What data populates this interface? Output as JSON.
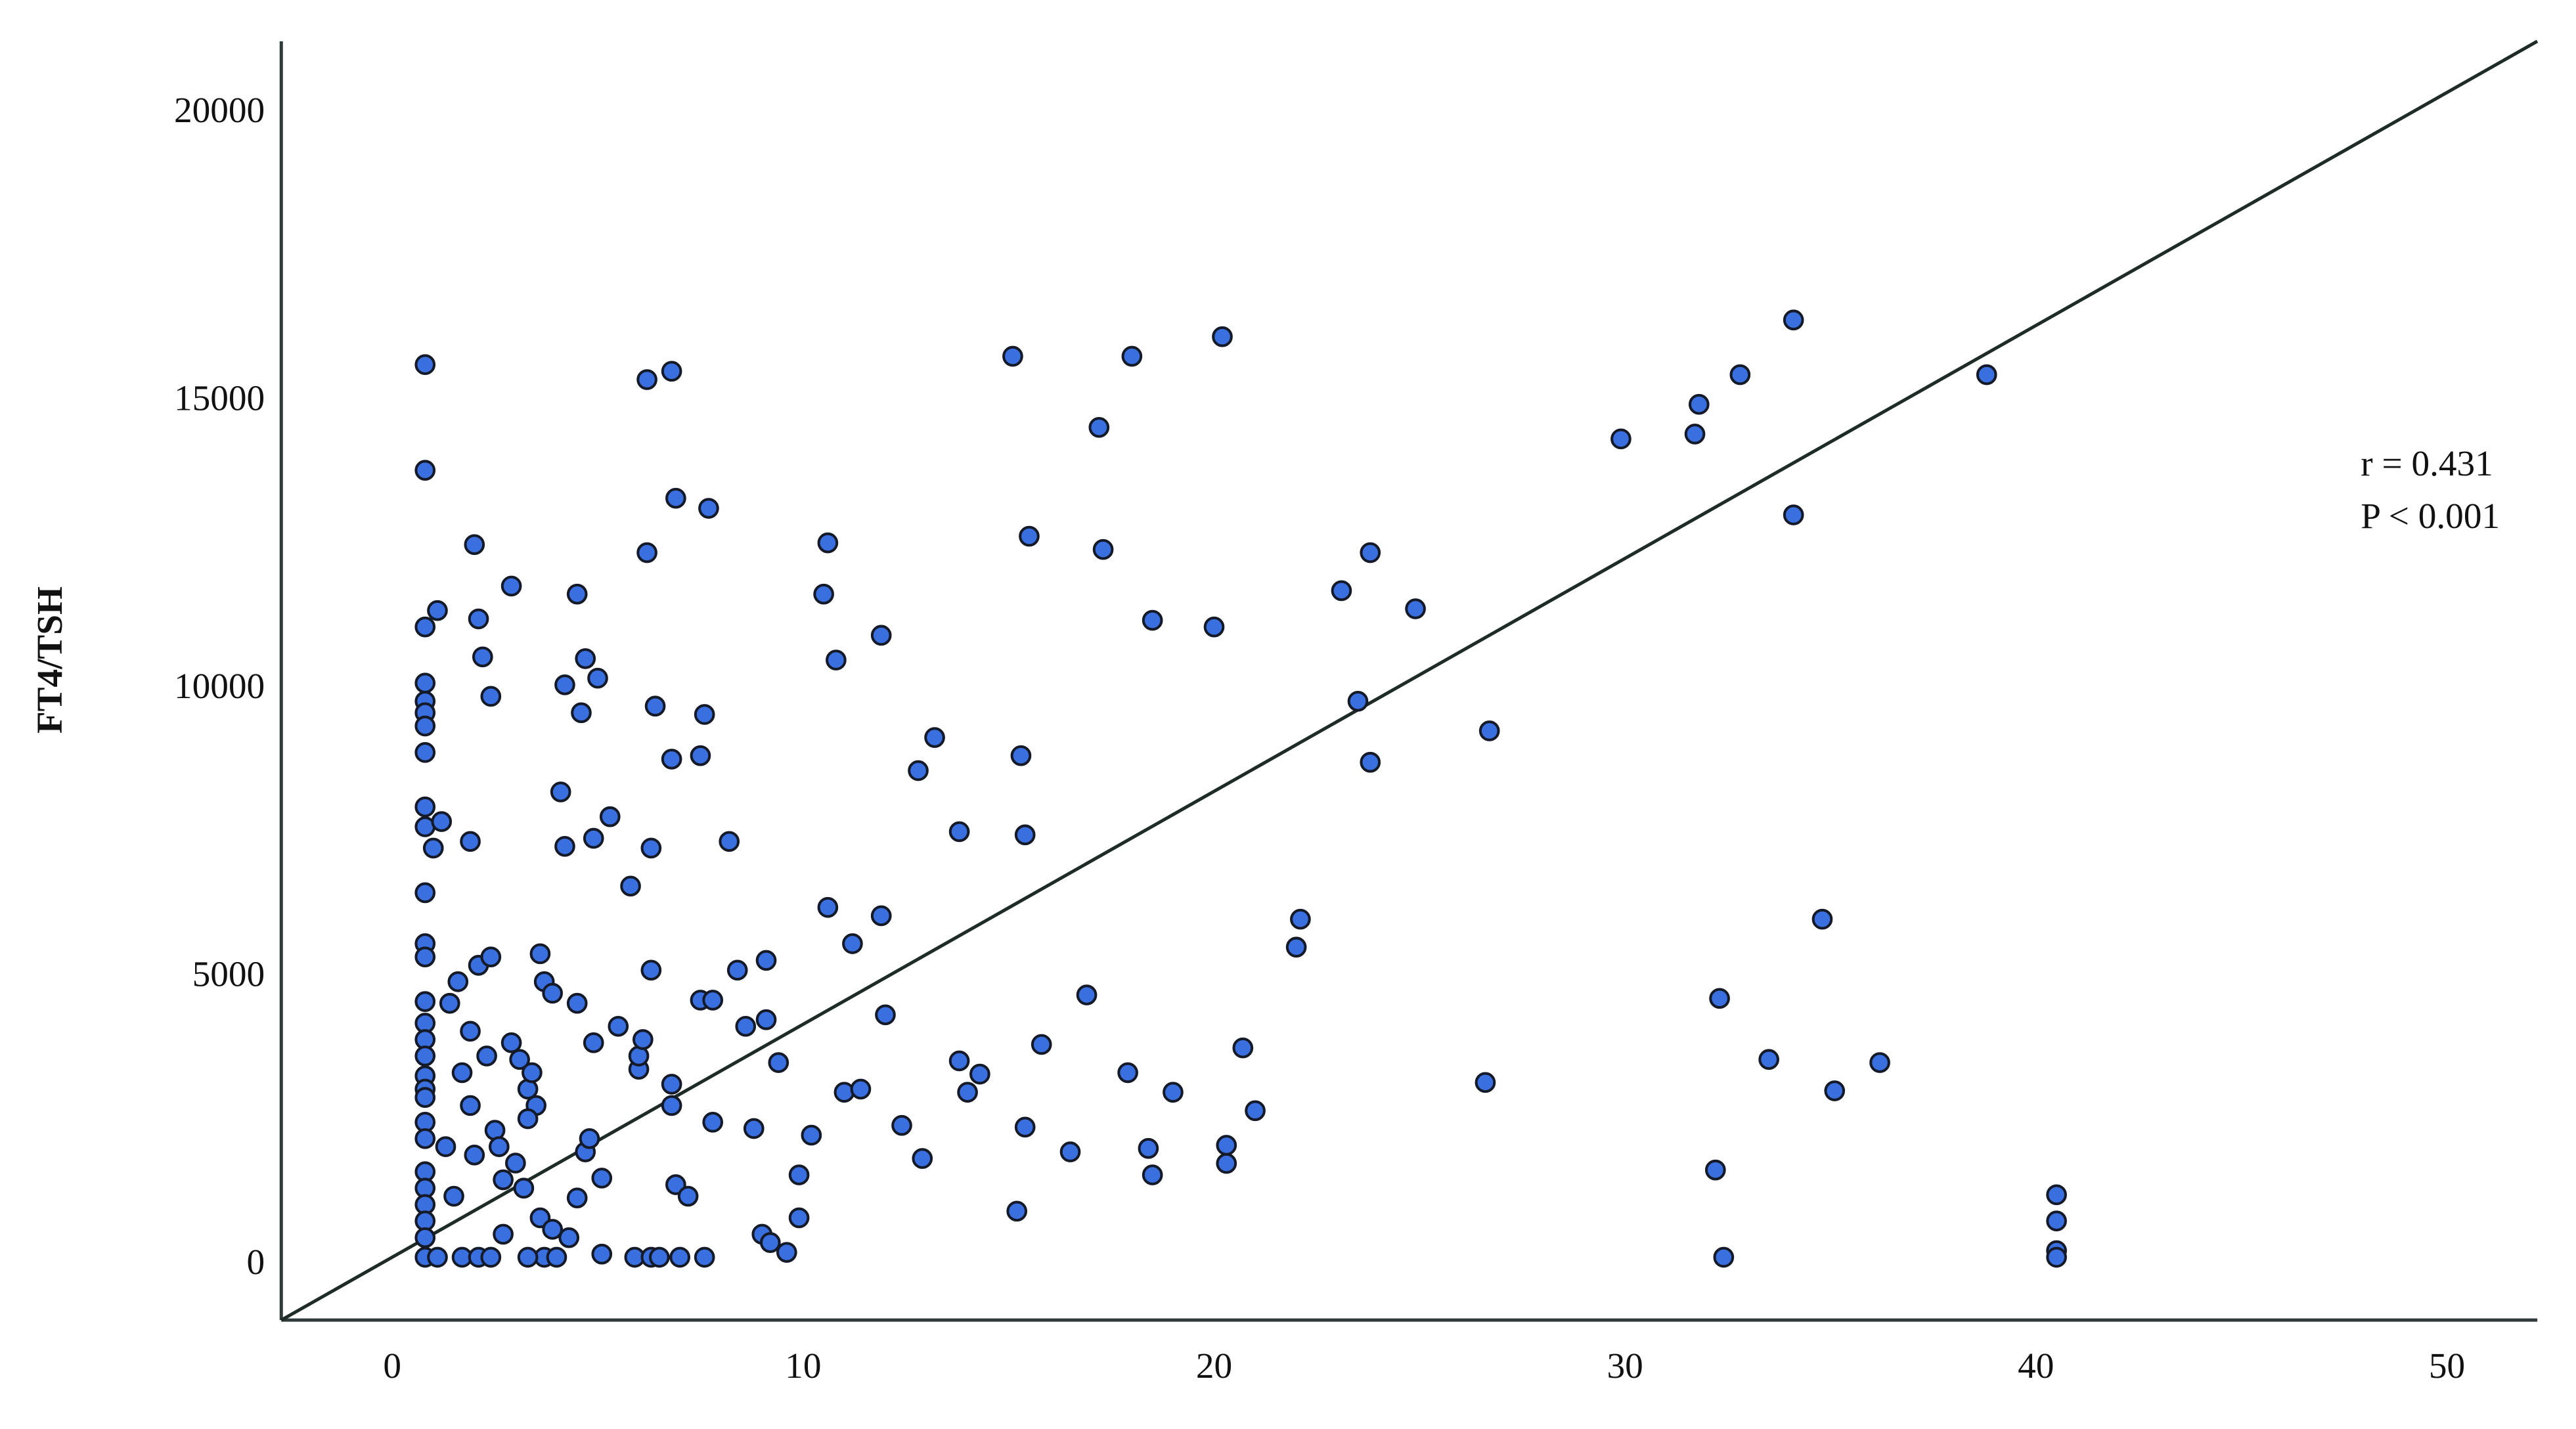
{
  "chart_data": {
    "type": "scatter",
    "y_label": "FT4/TSH",
    "annotations": [
      "r = 0.431",
      "P < 0.001"
    ],
    "color": "#3a6fe0",
    "xlim": [
      -2.7,
      52.2
    ],
    "ylim": [
      -946,
      21260
    ],
    "xticks": [
      0,
      10,
      20,
      30,
      40,
      50
    ],
    "yticks": [
      0,
      5000,
      10000,
      15000,
      20000
    ],
    "x": [
      0.8,
      0.8,
      0.8,
      0.8,
      0.8,
      0.8,
      0.8,
      0.8,
      0.8,
      0.8,
      0.8,
      0.8,
      0.8,
      0.8,
      0.8,
      0.8,
      0.8,
      0.8,
      0.8,
      0.8,
      0.8,
      0.8,
      0.8,
      0.8,
      0.8,
      0.8,
      0.8,
      0.8,
      1.0,
      1.1,
      1.2,
      1.4,
      1.6,
      1.3,
      1.5,
      1.7,
      1.9,
      1.9,
      2.0,
      2.1,
      2.1,
      1.9,
      2.0,
      2.2,
      2.4,
      2.4,
      2.3,
      2.5,
      2.6,
      2.7,
      2.7,
      2.9,
      2.9,
      3.1,
      3.3,
      3.4,
      3.5,
      3.3,
      3.2,
      3.0,
      3.6,
      3.7,
      3.9,
      3.6,
      3.9,
      3.7,
      4.1,
      4.2,
      4.2,
      4.3,
      4.5,
      4.5,
      4.6,
      4.7,
      4.7,
      4.5,
      4.8,
      4.9,
      4.9,
      5.0,
      5.1,
      5.1,
      5.3,
      5.5,
      5.8,
      6.0,
      6.0,
      6.1,
      6.2,
      6.2,
      6.3,
      6.3,
      6.4,
      6.8,
      6.8,
      6.9,
      6.8,
      6.8,
      6.9,
      7.2,
      7.5,
      7.7,
      7.6,
      7.5,
      7.8,
      7.8,
      8.2,
      8.4,
      8.6,
      8.8,
      9.1,
      9.1,
      9.0,
      9.2,
      9.4,
      9.6,
      9.9,
      9.9,
      10.2,
      10.5,
      10.6,
      10.6,
      10.8,
      11.0,
      11.2,
      11.4,
      11.9,
      11.9,
      12.0,
      12.4,
      12.8,
      12.9,
      13.2,
      13.8,
      13.8,
      14.0,
      14.3,
      15.1,
      15.2,
      15.3,
      15.4,
      15.4,
      15.5,
      15.8,
      16.5,
      16.9,
      17.2,
      17.3,
      17.9,
      18.0,
      18.4,
      18.5,
      18.5,
      19.0,
      20.0,
      20.2,
      20.3,
      20.3,
      20.7,
      21.0,
      22.0,
      22.1,
      23.1,
      23.5,
      23.8,
      23.8,
      24.9,
      26.6,
      26.7,
      29.9,
      31.7,
      31.8,
      32.3,
      32.2,
      32.4,
      32.8,
      33.5,
      34.1,
      34.1,
      34.8,
      35.1,
      36.2,
      38.8,
      40.5,
      40.5,
      40.5,
      40.5,
      1.1,
      1.7,
      2.1,
      2.4,
      3.3,
      4.0,
      5.9,
      6.3,
      6.5,
      7.0,
      7.6
    ],
    "values": [
      15645,
      13810,
      11090,
      10115,
      9800,
      9600,
      9370,
      8910,
      7965,
      7620,
      6475,
      5590,
      5360,
      4585,
      4210,
      3925,
      3640,
      3295,
      3065,
      2920,
      2490,
      2205,
      1630,
      1345,
      1060,
      775,
      485,
      145,
      7250,
      11375,
      7710,
      4555,
      4930,
      2065,
      1205,
      3350,
      2780,
      7365,
      12520,
      11230,
      5215,
      4070,
      1920,
      10570,
      9885,
      5360,
      3640,
      2350,
      2065,
      1490,
      545,
      11800,
      3870,
      3580,
      3065,
      3350,
      2780,
      2550,
      1345,
      1780,
      5415,
      4930,
      4730,
      830,
      630,
      145,
      8225,
      10085,
      7280,
      485,
      11660,
      4555,
      9600,
      10540,
      1975,
      1175,
      2205,
      7420,
      3870,
      10200,
      200,
      1520,
      7795,
      4155,
      6590,
      3410,
      3640,
      3925,
      12380,
      15385,
      5130,
      7250,
      9715,
      8795,
      15530,
      13325,
      3150,
      2780,
      1405,
      1205,
      8855,
      13150,
      9570,
      4610,
      4610,
      2490,
      7365,
      5130,
      4155,
      2380,
      5300,
      4270,
      545,
      400,
      3525,
      230,
      1575,
      830,
      2265,
      11660,
      12550,
      6220,
      10515,
      3010,
      5590,
      3065,
      10945,
      6075,
      4355,
      2435,
      8595,
      1860,
      9170,
      7535,
      3555,
      3010,
      3325,
      15790,
      945,
      8855,
      7480,
      2405,
      12665,
      3840,
      1975,
      4700,
      14555,
      12435,
      3350,
      15790,
      2035,
      11205,
      1575,
      3010,
      11090,
      16130,
      2090,
      1775,
      3780,
      2690,
      5530,
      6015,
      11720,
      9800,
      12380,
      8740,
      11405,
      3180,
      9285,
      14355,
      14440,
      14955,
      4640,
      1660,
      145,
      15470,
      3580,
      16420,
      13035,
      6015,
      3035,
      3525,
      15470,
      1230,
      775,
      260,
      145,
      145,
      145,
      145,
      145,
      145,
      145,
      145,
      145,
      145,
      145,
      145
    ],
    "trendline": {
      "x": [
        -2.7,
        52.2
      ],
      "y": [
        -946,
        21260
      ]
    }
  }
}
